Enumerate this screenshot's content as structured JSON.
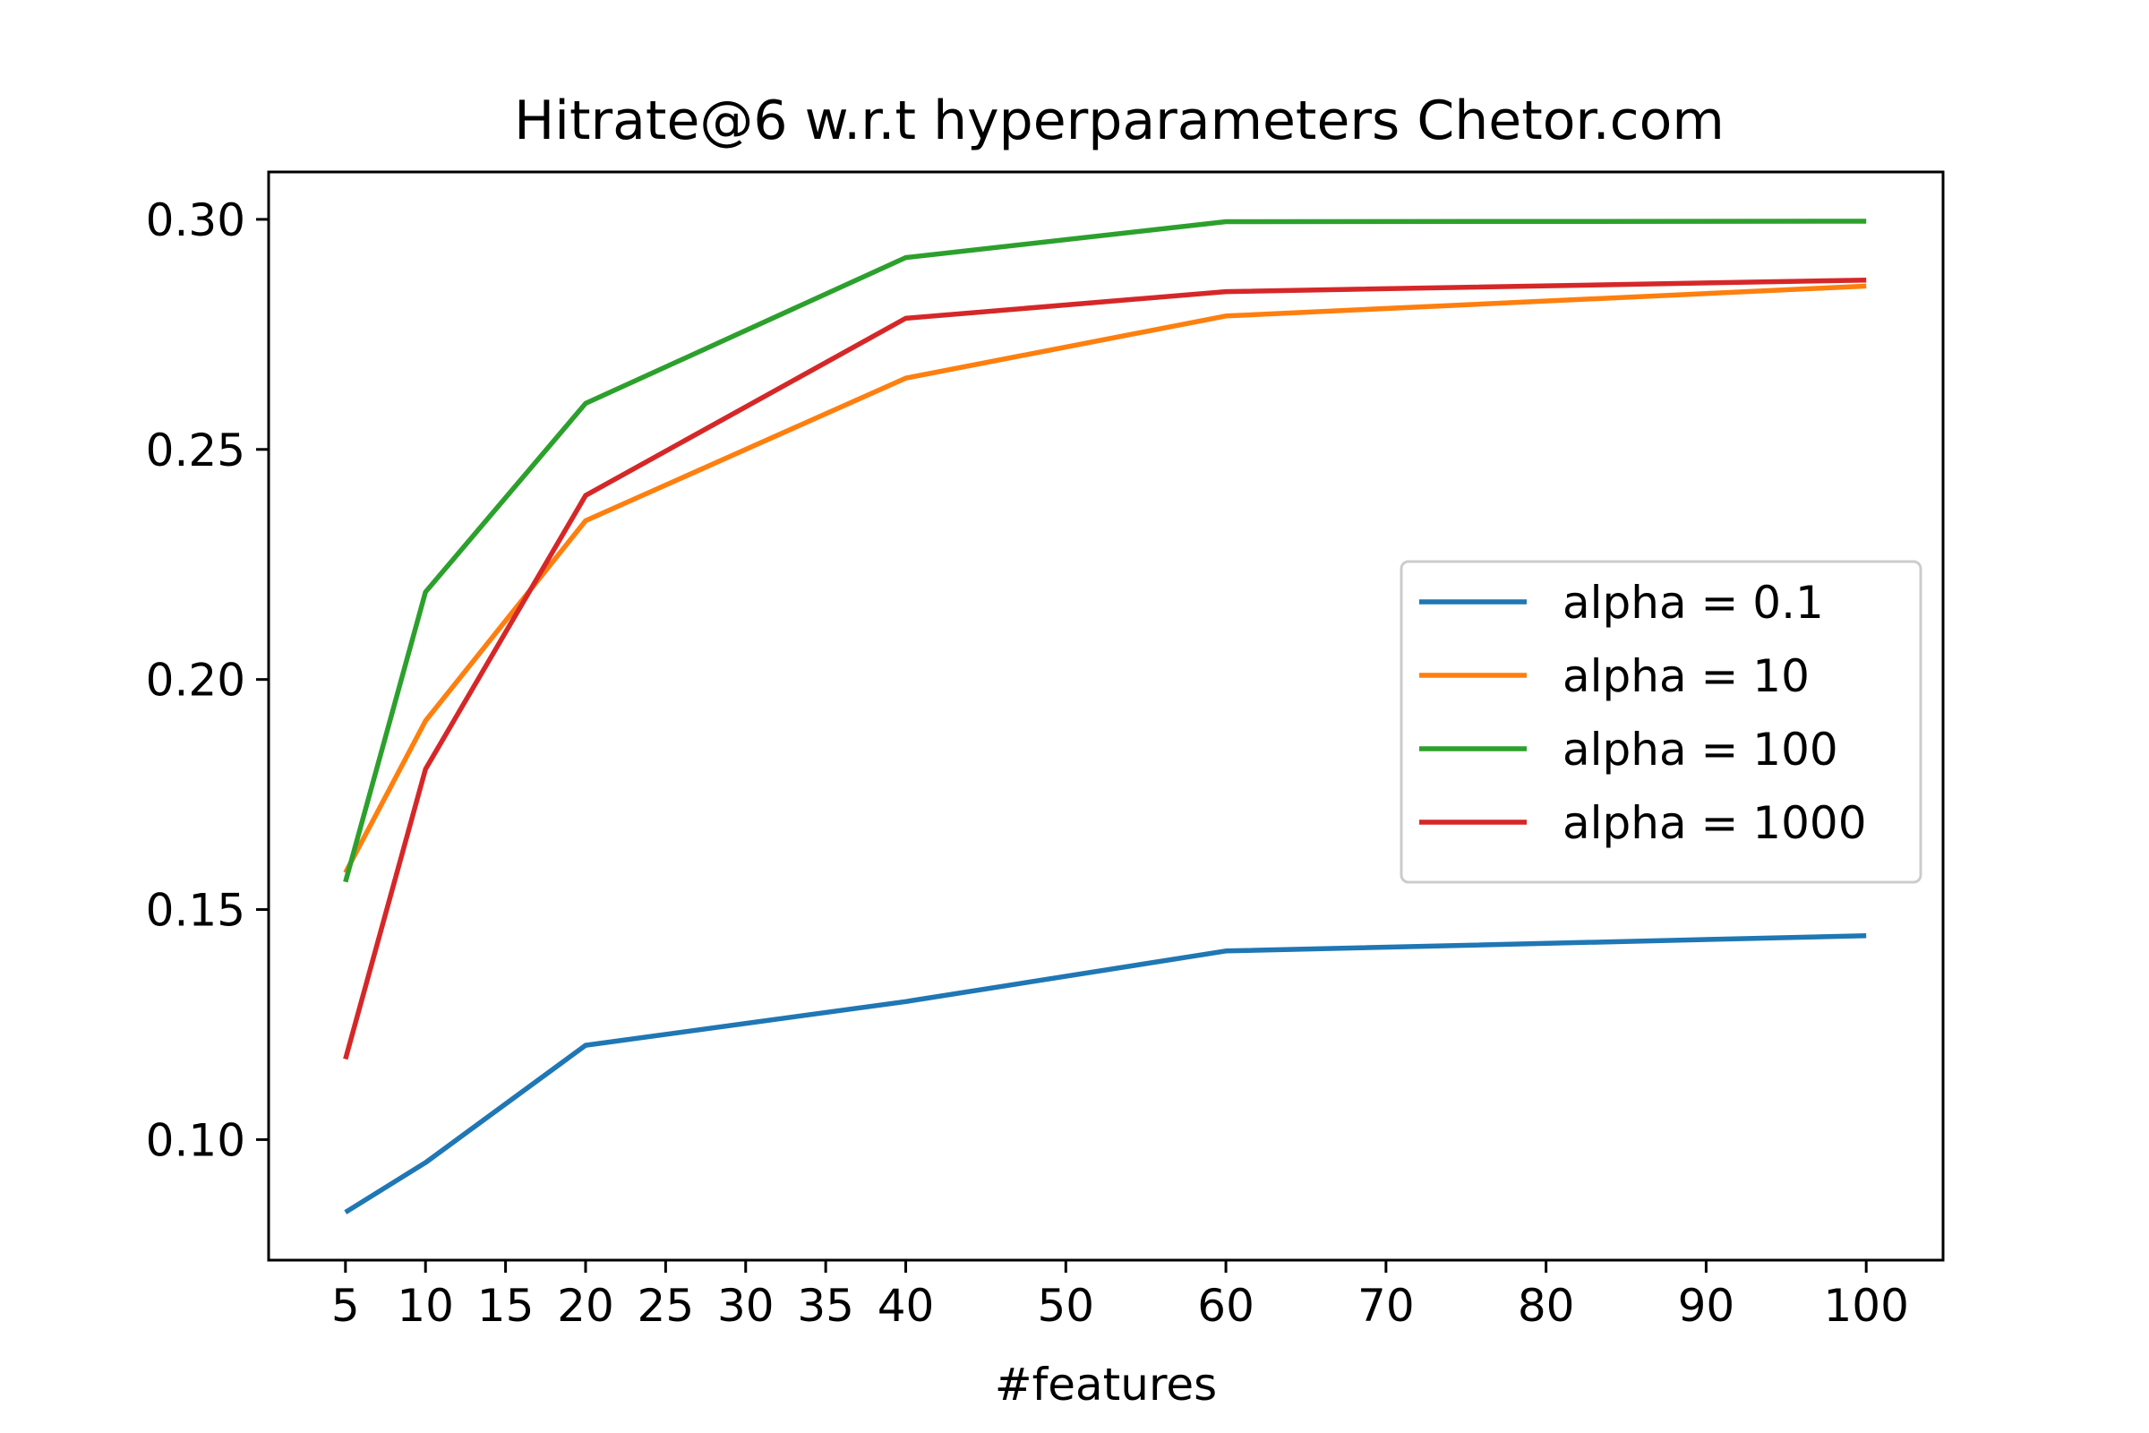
{
  "chart_data": {
    "type": "line",
    "title": "Hitrate@6 w.r.t hyperparameters Chetor.com",
    "xlabel": "#features",
    "ylabel": "",
    "x": [
      5,
      10,
      20,
      40,
      60,
      100
    ],
    "xticks": [
      5,
      10,
      15,
      20,
      25,
      30,
      35,
      40,
      50,
      60,
      70,
      80,
      90,
      100
    ],
    "xtick_labels": [
      "5",
      "10",
      "15",
      "20",
      "25",
      "30",
      "35",
      "40",
      "50",
      "60",
      "70",
      "80",
      "90",
      "100"
    ],
    "xlim": [
      0.2,
      104.8
    ],
    "yticks": [
      0.1,
      0.15,
      0.2,
      0.25,
      0.3
    ],
    "ytick_labels": [
      "0.10",
      "0.15",
      "0.20",
      "0.25",
      "0.30"
    ],
    "ylim": [
      0.0738,
      0.3103
    ],
    "grid": false,
    "legend_position": "center-right",
    "series": [
      {
        "name": "alpha = 0.1",
        "color": "#1f77b4",
        "values": [
          0.0842,
          0.095,
          0.1205,
          0.13,
          0.141,
          0.1443
        ]
      },
      {
        "name": "alpha = 10",
        "color": "#ff7f0e",
        "values": [
          0.158,
          0.191,
          0.2345,
          0.2655,
          0.279,
          0.2855
        ]
      },
      {
        "name": "alpha = 100",
        "color": "#2ca02c",
        "values": [
          0.156,
          0.219,
          0.26,
          0.2917,
          0.2995,
          0.2996
        ]
      },
      {
        "name": "alpha = 1000",
        "color": "#d62728",
        "values": [
          0.1175,
          0.1805,
          0.24,
          0.2785,
          0.2843,
          0.2868
        ]
      }
    ]
  }
}
